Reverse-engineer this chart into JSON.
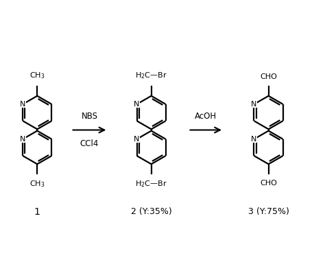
{
  "background_color": "#ffffff",
  "line_color": "#000000",
  "line_width": 1.6,
  "fig_width": 4.74,
  "fig_height": 3.79,
  "dpi": 100,
  "arrow1_label_top": "NBS",
  "arrow1_label_bottom": "CCl4",
  "arrow2_label_top": "AcOH",
  "compound1_label": "1",
  "compound2_label": "2 (Y:35%)",
  "compound3_label": "3 (Y:75%)"
}
